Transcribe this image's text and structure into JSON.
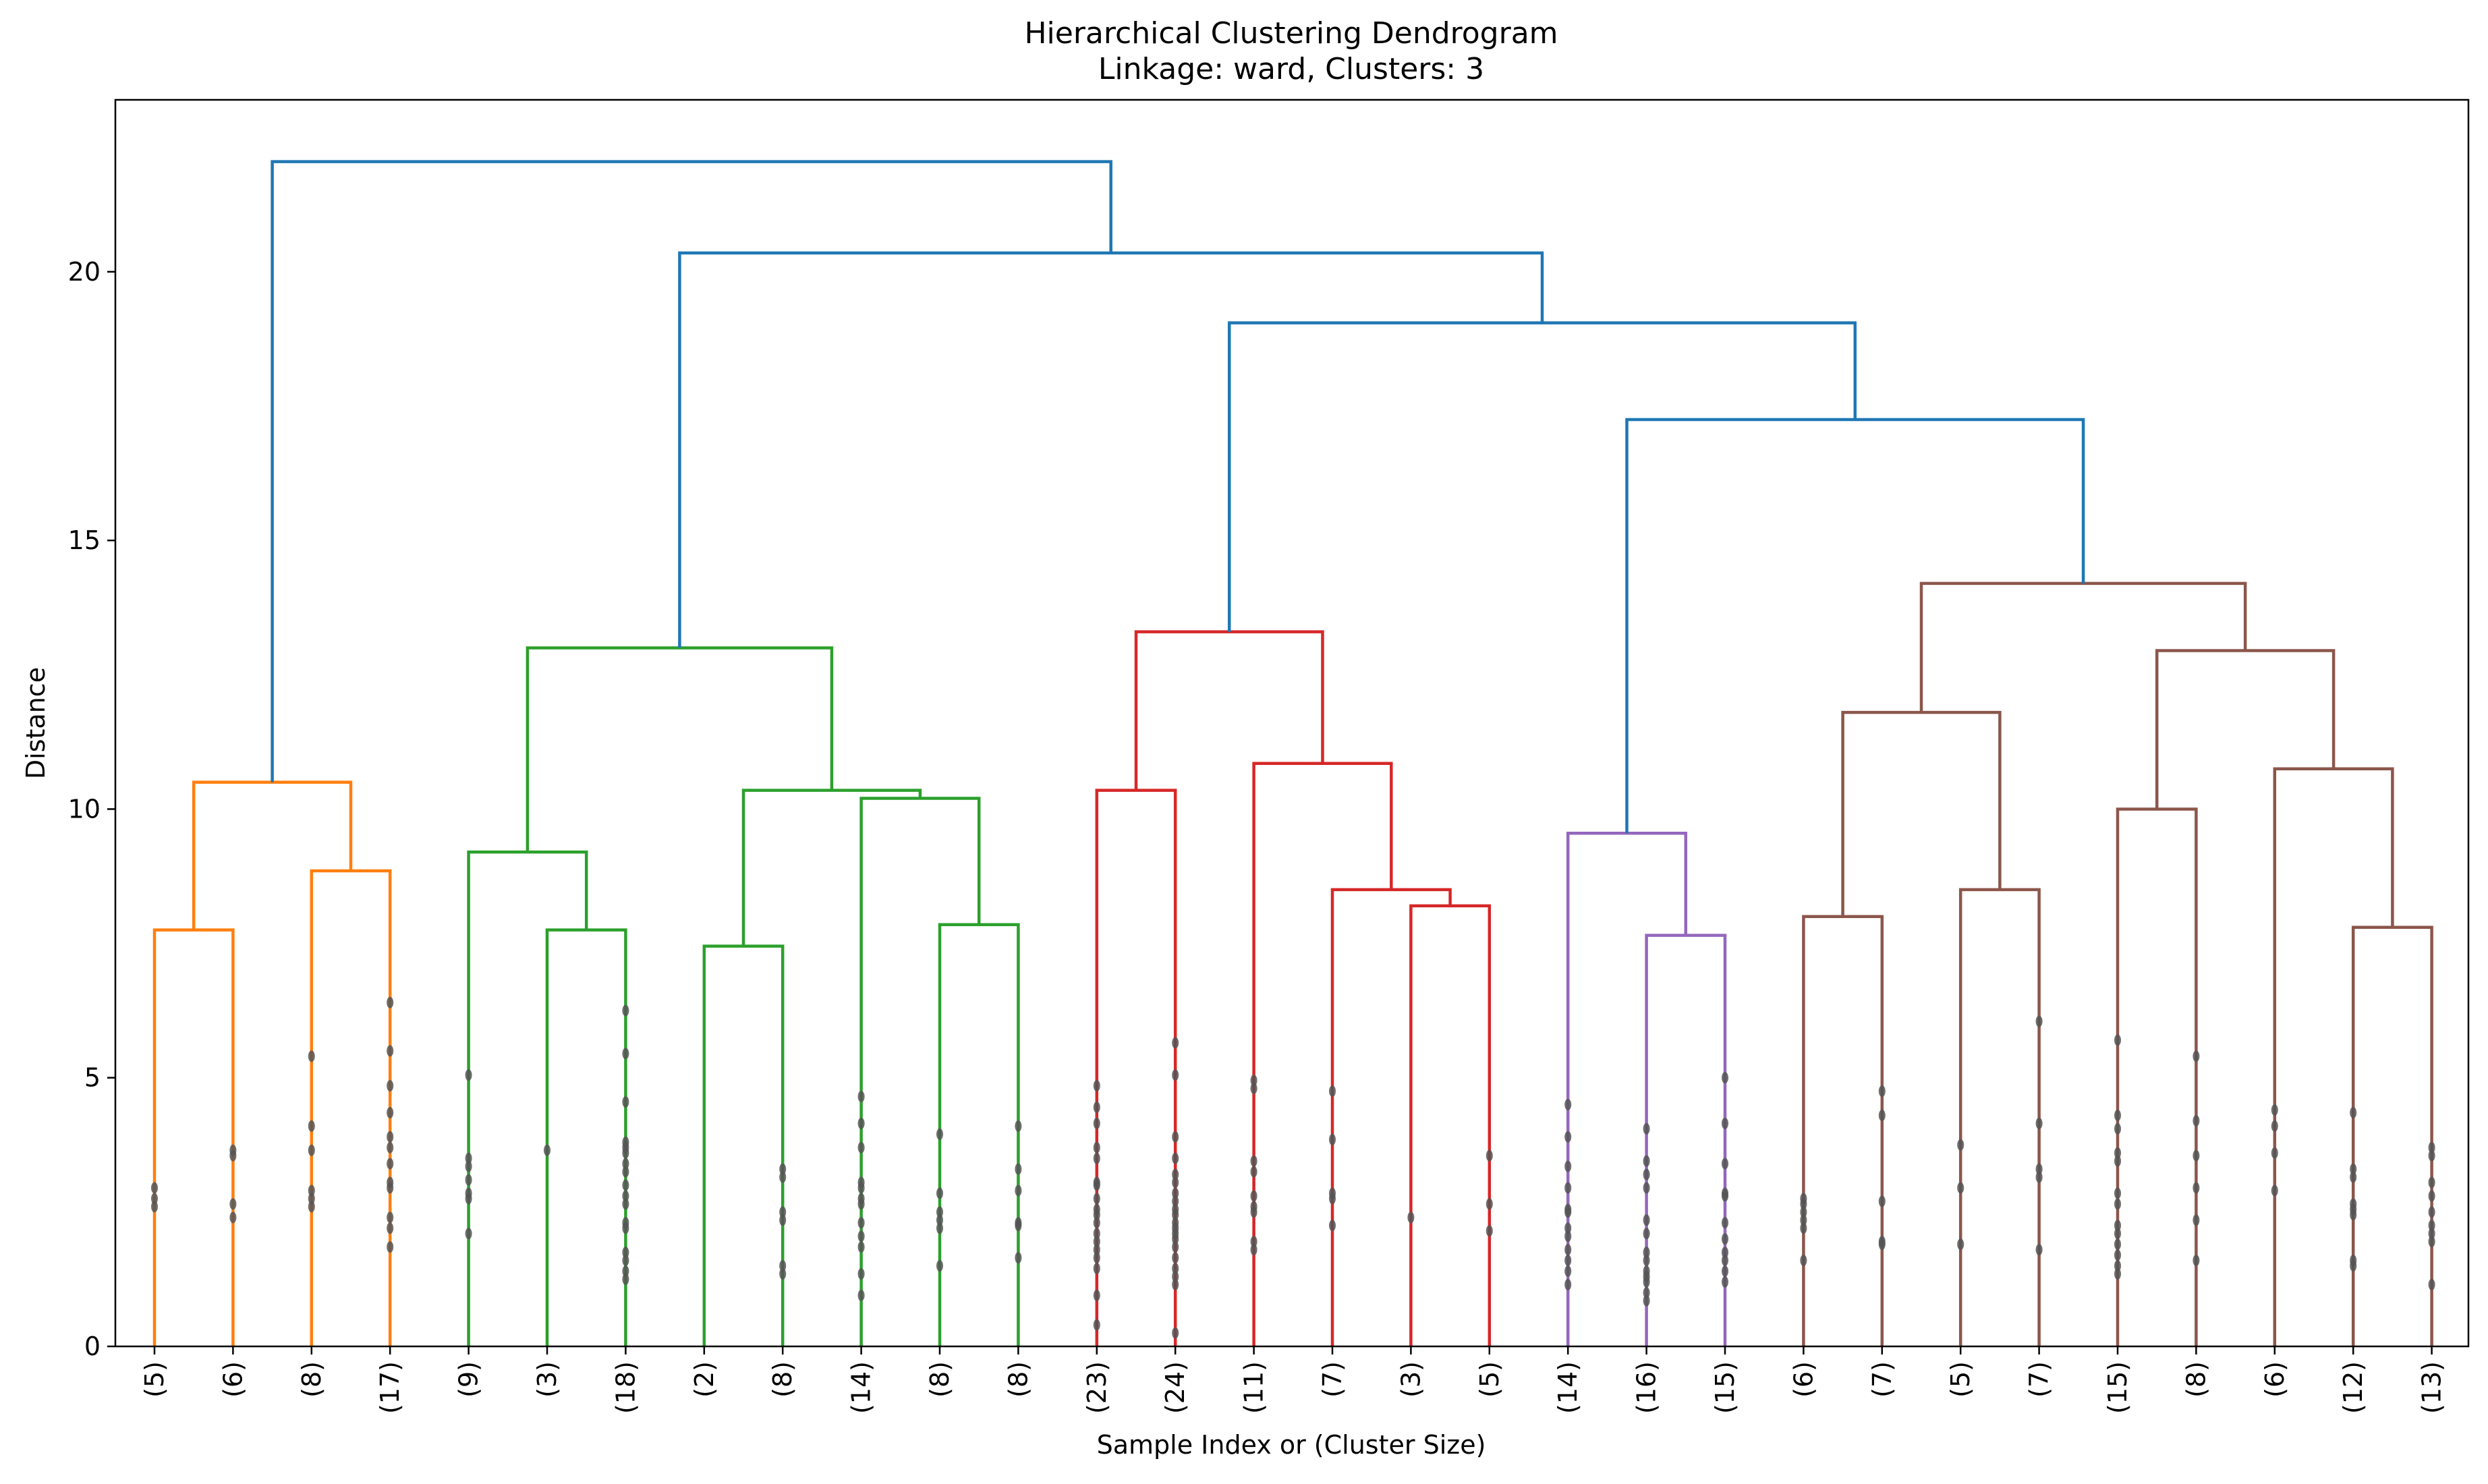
{
  "chart_data": {
    "type": "dendrogram",
    "title": "Hierarchical Clustering Dendrogram",
    "subtitle": "Linkage: ward, Clusters: 3",
    "xlabel": "Sample Index or (Cluster Size)",
    "ylabel": "Distance",
    "ylim": [
      0,
      23.2
    ],
    "yticks": [
      0,
      5,
      10,
      15,
      20
    ],
    "grid": false,
    "colors": {
      "orange": "#ff7f0e",
      "green": "#2ca02c",
      "red": "#d62728",
      "purple": "#9467bd",
      "brown": "#8c564b",
      "blue": "#1f77b4",
      "dots": "#555555"
    },
    "leaves": [
      {
        "label": "(5)",
        "dots": [
          2.6,
          2.75,
          2.95
        ]
      },
      {
        "label": "(6)",
        "dots": [
          2.4,
          2.65,
          3.55,
          3.65
        ]
      },
      {
        "label": "(8)",
        "dots": [
          2.6,
          2.75,
          2.9,
          3.65,
          4.1,
          5.4
        ]
      },
      {
        "label": "(17)",
        "dots": [
          1.85,
          2.2,
          2.4,
          2.95,
          3.05,
          3.4,
          3.7,
          3.9,
          4.35,
          4.85,
          5.5,
          6.4
        ]
      },
      {
        "label": "(9)",
        "dots": [
          2.1,
          2.75,
          2.85,
          3.1,
          3.35,
          3.5,
          5.05
        ]
      },
      {
        "label": "(3)",
        "dots": [
          3.65
        ]
      },
      {
        "label": "(18)",
        "dots": [
          1.25,
          1.4,
          1.6,
          1.75,
          2.2,
          2.3,
          2.65,
          2.8,
          3.0,
          3.25,
          3.4,
          3.6,
          3.7,
          3.8,
          4.55,
          5.45,
          6.25
        ]
      },
      {
        "label": "(2)",
        "dots": []
      },
      {
        "label": "(8)",
        "dots": [
          1.35,
          1.5,
          2.35,
          2.5,
          3.15,
          3.3
        ]
      },
      {
        "label": "(14)",
        "dots": [
          0.95,
          1.35,
          1.85,
          2.05,
          2.3,
          2.65,
          2.75,
          2.95,
          3.05,
          3.7,
          4.15,
          4.65
        ]
      },
      {
        "label": "(8)",
        "dots": [
          1.5,
          2.2,
          2.35,
          2.5,
          2.85,
          3.95
        ]
      },
      {
        "label": "(8)",
        "dots": [
          1.65,
          2.25,
          2.3,
          2.9,
          3.3,
          4.1
        ]
      },
      {
        "label": "(23)",
        "dots": [
          0.4,
          0.95,
          1.45,
          1.65,
          1.8,
          1.95,
          2.1,
          2.3,
          2.45,
          2.55,
          2.75,
          3.0,
          3.05,
          3.5,
          3.7,
          4.15,
          4.45,
          4.85
        ]
      },
      {
        "label": "(24)",
        "dots": [
          0.25,
          1.15,
          1.3,
          1.45,
          1.65,
          1.85,
          2.0,
          2.1,
          2.2,
          2.3,
          2.45,
          2.55,
          2.7,
          2.85,
          3.05,
          3.2,
          3.5,
          3.9,
          5.05,
          5.65
        ]
      },
      {
        "label": "(11)",
        "dots": [
          1.8,
          1.95,
          2.5,
          2.6,
          2.8,
          3.25,
          3.45,
          4.8,
          4.95
        ]
      },
      {
        "label": "(7)",
        "dots": [
          2.25,
          2.75,
          2.85,
          3.85,
          4.75
        ]
      },
      {
        "label": "(3)",
        "dots": [
          2.4
        ]
      },
      {
        "label": "(5)",
        "dots": [
          2.15,
          2.65,
          3.55
        ]
      },
      {
        "label": "(14)",
        "dots": [
          1.15,
          1.4,
          1.6,
          1.8,
          2.05,
          2.2,
          2.5,
          2.55,
          2.95,
          3.35,
          3.9,
          4.5
        ]
      },
      {
        "label": "(16)",
        "dots": [
          0.85,
          1.0,
          1.2,
          1.3,
          1.4,
          1.6,
          1.75,
          2.1,
          2.35,
          2.95,
          3.2,
          3.45,
          4.05
        ]
      },
      {
        "label": "(15)",
        "dots": [
          1.2,
          1.4,
          1.6,
          1.75,
          2.0,
          2.3,
          2.8,
          2.85,
          3.4,
          4.15,
          5.0
        ]
      },
      {
        "label": "(6)",
        "dots": [
          1.6,
          2.2,
          2.35,
          2.5,
          2.65,
          2.75
        ]
      },
      {
        "label": "(7)",
        "dots": [
          1.9,
          1.95,
          2.7,
          4.3,
          4.75
        ]
      },
      {
        "label": "(5)",
        "dots": [
          1.9,
          2.95,
          3.75
        ]
      },
      {
        "label": "(7)",
        "dots": [
          1.8,
          3.15,
          3.3,
          4.15,
          6.05
        ]
      },
      {
        "label": "(15)",
        "dots": [
          1.35,
          1.5,
          1.7,
          1.9,
          2.1,
          2.25,
          2.65,
          2.85,
          3.45,
          3.6,
          4.05,
          4.3,
          5.7
        ]
      },
      {
        "label": "(8)",
        "dots": [
          1.6,
          2.35,
          2.95,
          3.55,
          4.2,
          5.4
        ]
      },
      {
        "label": "(6)",
        "dots": [
          2.9,
          3.6,
          4.1,
          4.4
        ]
      },
      {
        "label": "(12)",
        "dots": [
          1.5,
          1.6,
          2.45,
          2.55,
          2.65,
          3.15,
          3.3,
          4.35
        ]
      },
      {
        "label": "(13)",
        "dots": [
          1.15,
          1.95,
          2.1,
          2.25,
          2.5,
          2.8,
          3.05,
          3.55,
          3.7
        ]
      }
    ],
    "links": [
      {
        "left": {
          "leaf": 0
        },
        "right": {
          "leaf": 1
        },
        "height": 7.75,
        "color": "orange"
      },
      {
        "left": {
          "leaf": 2
        },
        "right": {
          "leaf": 3
        },
        "height": 8.85,
        "color": "orange"
      },
      {
        "left": {
          "link": 0
        },
        "right": {
          "link": 1
        },
        "height": 10.5,
        "color": "orange"
      },
      {
        "left": {
          "leaf": 5
        },
        "right": {
          "leaf": 6
        },
        "height": 7.75,
        "color": "green"
      },
      {
        "left": {
          "leaf": 4
        },
        "right": {
          "link": 3
        },
        "height": 9.2,
        "color": "green"
      },
      {
        "left": {
          "leaf": 7
        },
        "right": {
          "leaf": 8
        },
        "height": 7.45,
        "color": "green"
      },
      {
        "left": {
          "leaf": 10
        },
        "right": {
          "leaf": 11
        },
        "height": 7.85,
        "color": "green"
      },
      {
        "left": {
          "leaf": 9
        },
        "right": {
          "link": 6
        },
        "height": 10.2,
        "color": "green"
      },
      {
        "left": {
          "link": 5
        },
        "right": {
          "link": 7
        },
        "height": 10.35,
        "color": "green"
      },
      {
        "left": {
          "link": 4
        },
        "right": {
          "link": 8
        },
        "height": 13.0,
        "color": "green"
      },
      {
        "left": {
          "leaf": 12
        },
        "right": {
          "leaf": 13
        },
        "height": 10.35,
        "color": "red"
      },
      {
        "left": {
          "leaf": 16
        },
        "right": {
          "leaf": 17
        },
        "height": 8.2,
        "color": "red"
      },
      {
        "left": {
          "leaf": 15
        },
        "right": {
          "link": 11
        },
        "height": 8.5,
        "color": "red"
      },
      {
        "left": {
          "leaf": 14
        },
        "right": {
          "link": 12
        },
        "height": 10.85,
        "color": "red"
      },
      {
        "left": {
          "link": 10
        },
        "right": {
          "link": 13
        },
        "height": 13.3,
        "color": "red"
      },
      {
        "left": {
          "leaf": 19
        },
        "right": {
          "leaf": 20
        },
        "height": 7.65,
        "color": "purple"
      },
      {
        "left": {
          "leaf": 18
        },
        "right": {
          "link": 15
        },
        "height": 9.55,
        "color": "purple"
      },
      {
        "left": {
          "leaf": 21
        },
        "right": {
          "leaf": 22
        },
        "height": 8.0,
        "color": "brown"
      },
      {
        "left": {
          "leaf": 23
        },
        "right": {
          "leaf": 24
        },
        "height": 8.5,
        "color": "brown"
      },
      {
        "left": {
          "link": 17
        },
        "right": {
          "link": 18
        },
        "height": 11.8,
        "color": "brown"
      },
      {
        "left": {
          "leaf": 25
        },
        "right": {
          "leaf": 26
        },
        "height": 10.0,
        "color": "brown"
      },
      {
        "left": {
          "leaf": 28
        },
        "right": {
          "leaf": 29
        },
        "height": 7.8,
        "color": "brown"
      },
      {
        "left": {
          "leaf": 27
        },
        "right": {
          "link": 21
        },
        "height": 10.75,
        "color": "brown"
      },
      {
        "left": {
          "link": 20
        },
        "right": {
          "link": 22
        },
        "height": 12.95,
        "color": "brown"
      },
      {
        "left": {
          "link": 19
        },
        "right": {
          "link": 23
        },
        "height": 14.2,
        "color": "brown"
      },
      {
        "left": {
          "link": 16
        },
        "right": {
          "link": 24
        },
        "height": 17.25,
        "color": "blue"
      },
      {
        "left": {
          "link": 14
        },
        "right": {
          "link": 25
        },
        "height": 19.05,
        "color": "blue"
      },
      {
        "left": {
          "link": 9
        },
        "right": {
          "link": 26
        },
        "height": 20.35,
        "color": "blue"
      },
      {
        "left": {
          "link": 2
        },
        "right": {
          "link": 27
        },
        "height": 22.05,
        "color": "blue"
      }
    ]
  }
}
